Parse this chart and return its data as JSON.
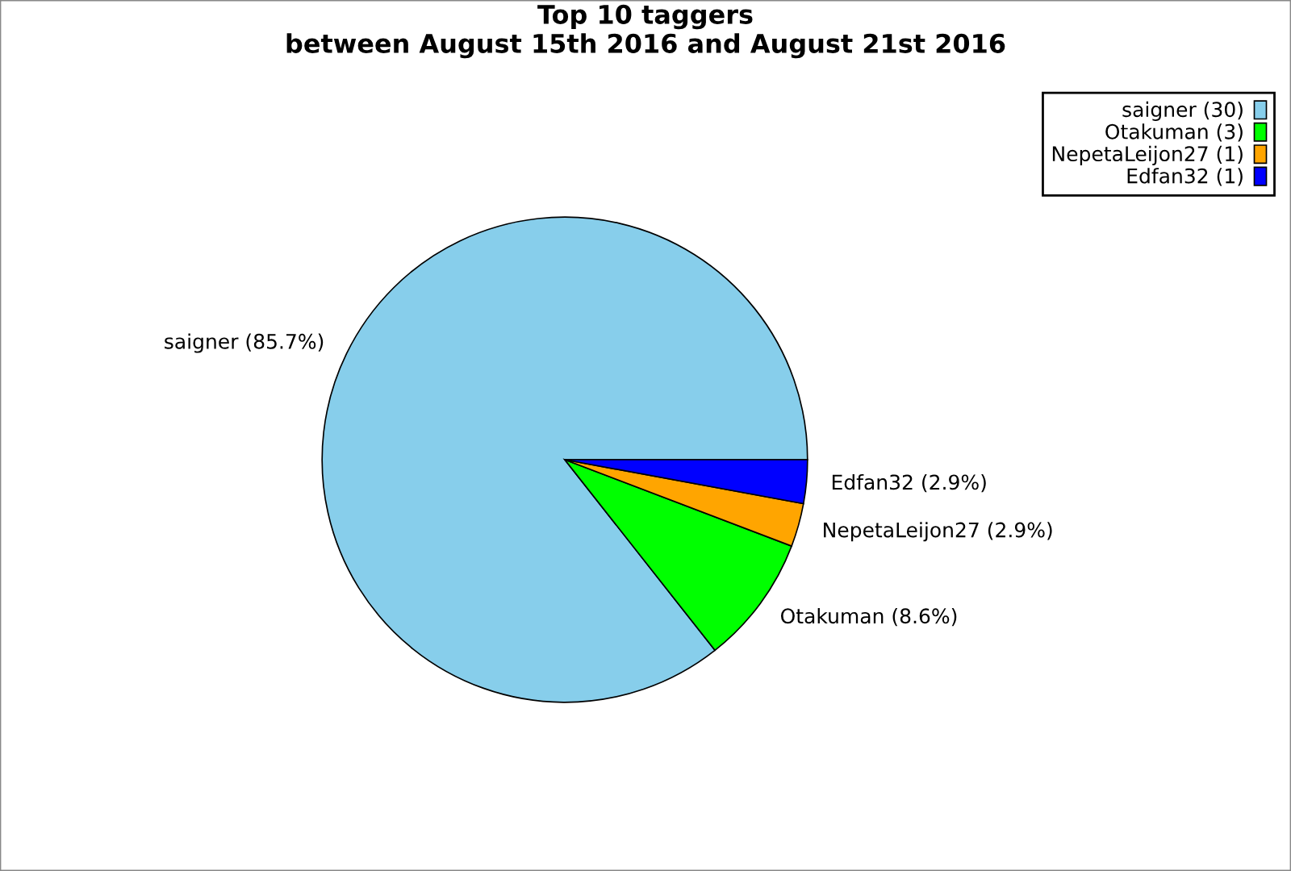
{
  "chart_data": {
    "type": "pie",
    "title": "Top 10 taggers\nbetween August 15th 2016 and August 21st 2016",
    "categories": [
      "saigner (30)",
      "Otakuman (3)",
      "NepetaLeijon27 (1)",
      "Edfan32 (1)"
    ],
    "values": [
      85.7,
      8.6,
      2.9,
      2.9
    ],
    "colors": [
      "#87ceeb",
      "#00ff00",
      "#ffa500",
      "#0000ff"
    ],
    "value_labels": [
      "saigner (85.7%)",
      "Otakuman (8.6%)",
      "NepetaLeijon27 (2.9%)",
      "Edfan32 (2.9%)"
    ],
    "legend": "top right"
  }
}
